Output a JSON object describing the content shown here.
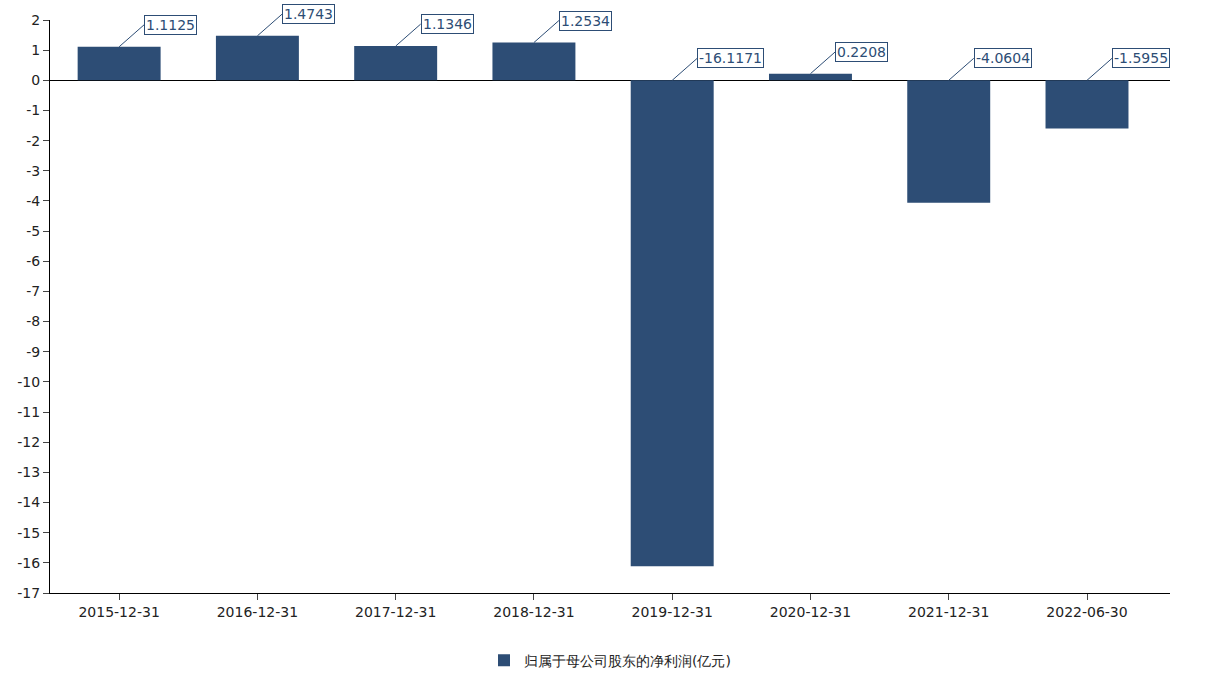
{
  "chart_data": {
    "type": "bar",
    "categories": [
      "2015-12-31",
      "2016-12-31",
      "2017-12-31",
      "2018-12-31",
      "2019-12-31",
      "2020-12-31",
      "2021-12-31",
      "2022-06-30"
    ],
    "series": [
      {
        "name": "归属于母公司股东的净利润(亿元)",
        "color": "#2d4d75",
        "values": [
          1.1125,
          1.4743,
          1.1346,
          1.2534,
          -16.1171,
          0.2208,
          -4.0604,
          -1.5955
        ]
      }
    ],
    "ylim": [
      -17,
      2
    ],
    "yticks": [
      -17,
      -16,
      -15,
      -14,
      -13,
      -12,
      -11,
      -10,
      -9,
      -8,
      -7,
      -6,
      -5,
      -4,
      -3,
      -2,
      -1,
      0,
      1,
      2
    ],
    "grid": false,
    "data_labels": true,
    "legend": "bottom"
  }
}
